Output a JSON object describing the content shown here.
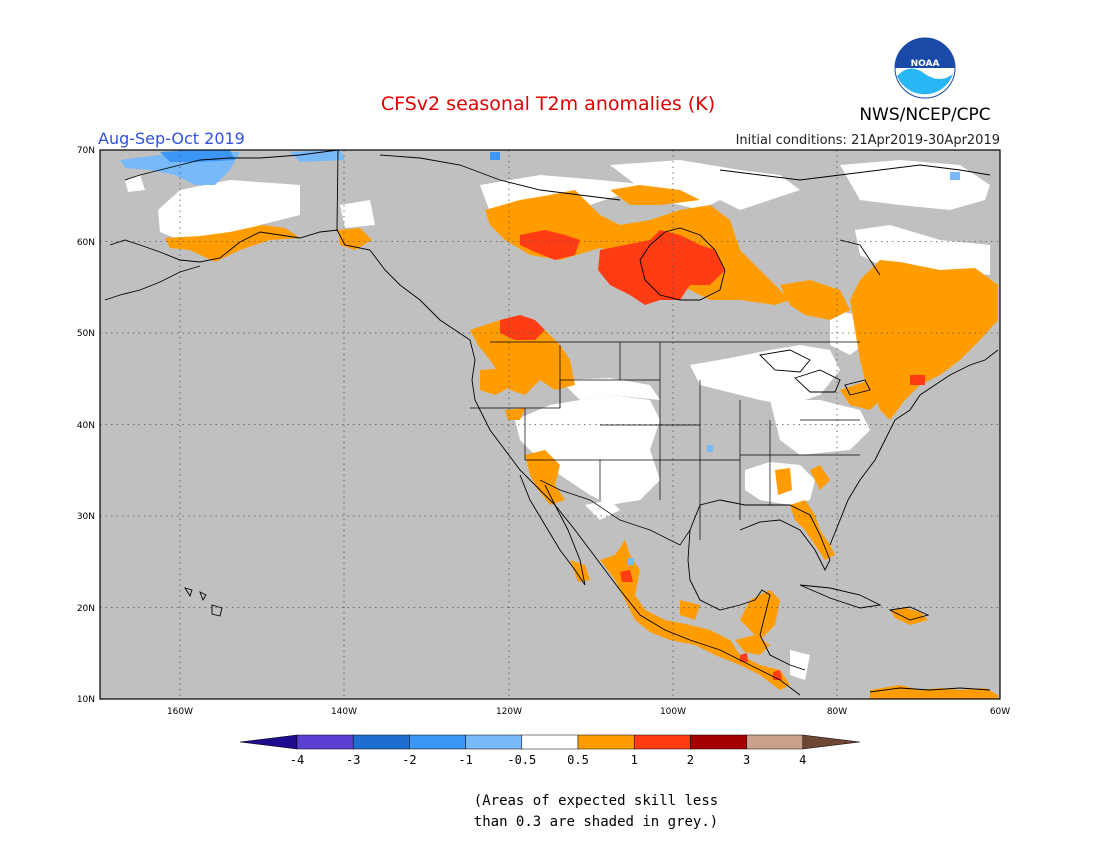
{
  "header": {
    "title": "CFSv2 seasonal T2m anomalies (K)",
    "period": "Aug-Sep-Oct 2019",
    "initial_conditions": "Initial conditions: 21Apr2019-30Apr2019",
    "agency": "NWS/NCEP/CPC",
    "logo_text": "NOAA"
  },
  "map": {
    "region": "North America",
    "projection": "cylindrical equidistant",
    "lon_range": [
      -172,
      -60
    ],
    "lat_range": [
      10,
      70
    ],
    "lat_labels": [
      "70N",
      "60N",
      "50N",
      "40N",
      "30N",
      "20N",
      "10N"
    ],
    "lon_labels": [
      "160W",
      "140W",
      "120W",
      "100W",
      "80W",
      "60W"
    ],
    "grey_meaning": "skill < 0.3",
    "colors": {
      "ocean_grey": "#c0c0c0",
      "neutral_white": "#ffffff",
      "anom_0.5_1": "#ff9d00",
      "anom_1_2": "#ff3c14",
      "anom_neg_1_neg_0.5": "#78b9fa",
      "anom_neg_2_neg_1": "#3c96f5"
    }
  },
  "colorbar": {
    "ticks": [
      "-4",
      "-3",
      "-2",
      "-1",
      "-0.5",
      "0.5",
      "1",
      "2",
      "3",
      "4"
    ],
    "colors": [
      "#1e0d8f",
      "#5a3fd2",
      "#1e6ed2",
      "#3c96f5",
      "#78b9fa",
      "#ffffff",
      "#ff9d00",
      "#ff3c14",
      "#a50000",
      "#c8a08c",
      "#6e4632"
    ]
  },
  "footnote": {
    "line1": "(Areas of expected skill less",
    "line2": "than 0.3 are shaded in grey.)"
  }
}
